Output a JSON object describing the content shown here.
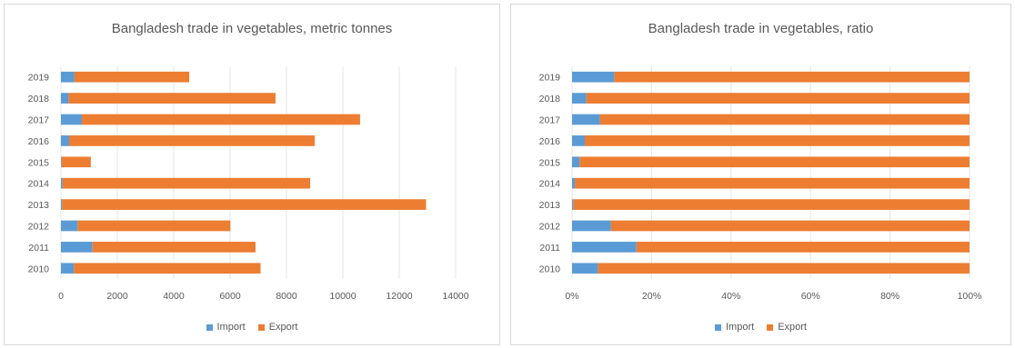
{
  "colors": {
    "import": "#5b9bd5",
    "export": "#ed7d31",
    "grid": "#e6e6e6",
    "text": "#595959"
  },
  "chart_data": [
    {
      "type": "bar",
      "orientation": "horizontal",
      "stacked": true,
      "title": "Bangladesh trade in vegetables, metric tonnes",
      "categories": [
        "2019",
        "2018",
        "2017",
        "2016",
        "2015",
        "2014",
        "2013",
        "2012",
        "2011",
        "2010"
      ],
      "series": [
        {
          "name": "Import",
          "values": [
            480,
            270,
            740,
            290,
            20,
            60,
            40,
            590,
            1120,
            460
          ]
        },
        {
          "name": "Export",
          "values": [
            4070,
            7340,
            9870,
            8710,
            1040,
            8780,
            12910,
            5420,
            5780,
            6620
          ]
        }
      ],
      "xlim": [
        0,
        14000
      ],
      "ticks": [
        0,
        2000,
        4000,
        6000,
        8000,
        10000,
        12000,
        14000
      ],
      "tick_labels": [
        "0",
        "2000",
        "4000",
        "6000",
        "8000",
        "10000",
        "12000",
        "14000"
      ],
      "grid": true,
      "legend": "bottom"
    },
    {
      "type": "bar",
      "orientation": "horizontal",
      "stacked": true,
      "percent": true,
      "title": "Bangladesh trade in vegetables, ratio",
      "categories": [
        "2019",
        "2018",
        "2017",
        "2016",
        "2015",
        "2014",
        "2013",
        "2012",
        "2011",
        "2010"
      ],
      "series": [
        {
          "name": "Import",
          "values": [
            0.106,
            0.036,
            0.07,
            0.032,
            0.019,
            0.007,
            0.003,
            0.098,
            0.162,
            0.065
          ]
        },
        {
          "name": "Export",
          "values": [
            0.894,
            0.964,
            0.93,
            0.968,
            0.981,
            0.993,
            0.997,
            0.902,
            0.838,
            0.935
          ]
        }
      ],
      "xlim": [
        0,
        1
      ],
      "ticks": [
        0,
        0.2,
        0.4,
        0.6,
        0.8,
        1.0
      ],
      "tick_labels": [
        "0%",
        "20%",
        "40%",
        "60%",
        "80%",
        "100%"
      ],
      "grid": true,
      "legend": "bottom"
    }
  ]
}
